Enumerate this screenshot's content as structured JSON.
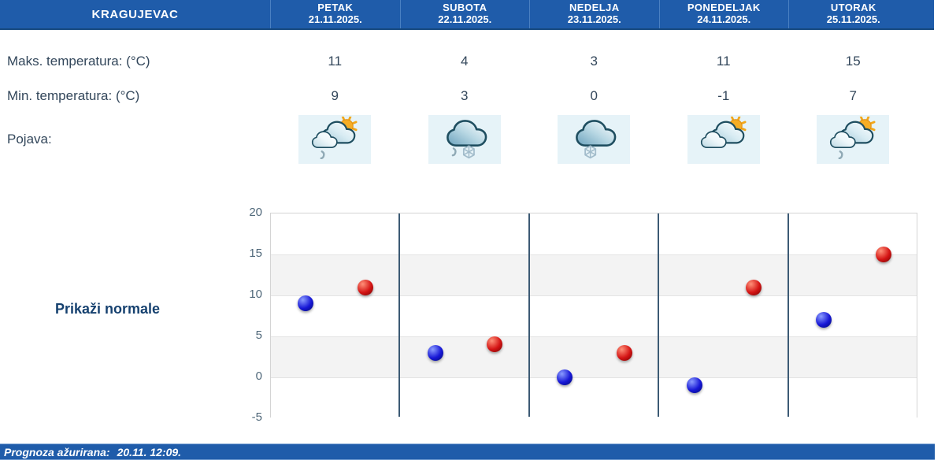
{
  "location": "KRAGUJEVAC",
  "columns": [
    {
      "day": "PETAK",
      "date": "21.11.2025."
    },
    {
      "day": "SUBOTA",
      "date": "22.11.2025."
    },
    {
      "day": "NEDELJA",
      "date": "23.11.2025."
    },
    {
      "day": "PONEDELJAK",
      "date": "24.11.2025."
    },
    {
      "day": "UTORAK",
      "date": "25.11.2025."
    }
  ],
  "rows": {
    "max_label": "Maks. temperatura: (°C)",
    "max_values": [
      11,
      4,
      3,
      11,
      15
    ],
    "min_label": "Min. temperatura: (°C)",
    "min_values": [
      9,
      3,
      0,
      -1,
      7
    ],
    "pojava_label": "Pojava:",
    "icons": [
      "partly-sunny-rain-icon",
      "cloud-rain-snow-icon",
      "cloud-snow-icon",
      "partly-sunny-icon",
      "partly-sunny-rain-icon"
    ]
  },
  "normals_link": "Prikaži normale",
  "chart_data": {
    "type": "scatter",
    "categories": [
      "21.11.2025.",
      "22.11.2025.",
      "23.11.2025.",
      "24.11.2025.",
      "25.11.2025."
    ],
    "series": [
      {
        "name": "Min. temperatura",
        "values": [
          9,
          3,
          0,
          -1,
          7
        ],
        "color": "#1717d6",
        "highlight": "#8a9cff",
        "shadow": "#000a6e",
        "offset": 0.27
      },
      {
        "name": "Maks. temperatura",
        "values": [
          11,
          4,
          3,
          11,
          15
        ],
        "color": "#d41414",
        "highlight": "#ff9078",
        "shadow": "#6e0202",
        "offset": 0.73
      }
    ],
    "ylim": [
      -5,
      20
    ],
    "ytick_step": 5,
    "yticks": [
      20,
      15,
      10,
      5,
      0,
      -5
    ],
    "grid": true,
    "band_color": "#f3f3f3",
    "separator_color": "#3c5a74",
    "legend": "none"
  },
  "footer": {
    "label": "Prognoza ažurirana:",
    "updated": "20.11. 12:09."
  },
  "colors": {
    "header_blue": "#1f5caa",
    "text_dark": "#33475b",
    "link_navy": "#16416f",
    "icon_bg": "#e6f3f8"
  }
}
